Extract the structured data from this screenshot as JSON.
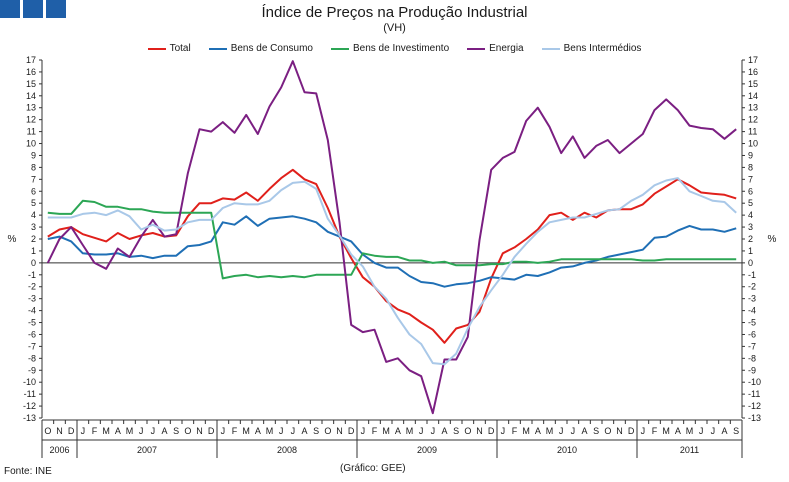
{
  "chart_data": {
    "type": "line",
    "title": "Índice de Preços na Produção Industrial",
    "subtitle": "(VH)",
    "ylabel_left": "%",
    "ylabel_right": "%",
    "ylim": [
      -13,
      17
    ],
    "yticks": [
      -13,
      -12,
      -11,
      -10,
      -9,
      -8,
      -7,
      -6,
      -5,
      -4,
      -3,
      -2,
      -1,
      0,
      1,
      2,
      3,
      4,
      5,
      6,
      7,
      8,
      9,
      10,
      11,
      12,
      13,
      14,
      15,
      16,
      17
    ],
    "grid": false,
    "legend_position": "top",
    "x_months": [
      "O",
      "N",
      "D",
      "J",
      "F",
      "M",
      "A",
      "M",
      "J",
      "J",
      "A",
      "S",
      "O",
      "N",
      "D",
      "J",
      "F",
      "M",
      "A",
      "M",
      "J",
      "J",
      "A",
      "S",
      "O",
      "N",
      "D",
      "J",
      "F",
      "M",
      "A",
      "M",
      "J",
      "J",
      "A",
      "S",
      "O",
      "N",
      "D",
      "J",
      "F",
      "M",
      "A",
      "M",
      "J",
      "J",
      "A",
      "S",
      "O",
      "N",
      "D",
      "J",
      "F",
      "M",
      "A",
      "M",
      "J",
      "J",
      "A",
      "S"
    ],
    "years": [
      {
        "label": "2006",
        "start": 0,
        "count": 3
      },
      {
        "label": "2007",
        "start": 3,
        "count": 12
      },
      {
        "label": "2008",
        "start": 15,
        "count": 12
      },
      {
        "label": "2009",
        "start": 27,
        "count": 12
      },
      {
        "label": "2010",
        "start": 39,
        "count": 12
      },
      {
        "label": "2011",
        "start": 51,
        "count": 9
      }
    ],
    "series": [
      {
        "name": "Total",
        "color": "#e0201b",
        "values": [
          2.2,
          2.8,
          3.0,
          2.4,
          2.1,
          1.8,
          2.5,
          2.0,
          2.3,
          2.5,
          2.2,
          2.3,
          3.9,
          5.0,
          5.0,
          5.4,
          5.3,
          5.9,
          5.2,
          6.2,
          7.1,
          7.8,
          7.0,
          6.6,
          4.6,
          2.2,
          0.4,
          -1.2,
          -2.0,
          -3.2,
          -3.9,
          -4.3,
          -5.0,
          -5.6,
          -6.7,
          -5.5,
          -5.2,
          -4.1,
          -1.3,
          0.8,
          1.3,
          2.0,
          2.8,
          4.0,
          4.2,
          3.6,
          4.2,
          3.8,
          4.4,
          4.5,
          4.5,
          4.9,
          5.8,
          6.4,
          7.0,
          6.5,
          5.9,
          5.8,
          5.7,
          5.4
        ]
      },
      {
        "name": "Bens de Consumo",
        "color": "#1f6fb5",
        "values": [
          2.0,
          2.2,
          1.8,
          0.8,
          0.7,
          0.7,
          0.8,
          0.5,
          0.6,
          0.4,
          0.6,
          0.6,
          1.4,
          1.5,
          1.8,
          3.4,
          3.2,
          3.9,
          3.1,
          3.7,
          3.8,
          3.9,
          3.7,
          3.4,
          2.6,
          2.2,
          1.8,
          0.7,
          0.0,
          -0.4,
          -0.4,
          -1.1,
          -1.6,
          -1.7,
          -2.0,
          -1.8,
          -1.7,
          -1.5,
          -1.2,
          -1.3,
          -1.4,
          -1.0,
          -1.1,
          -0.8,
          -0.4,
          -0.3,
          0.0,
          0.2,
          0.5,
          0.7,
          0.9,
          1.1,
          2.1,
          2.2,
          2.7,
          3.1,
          2.8,
          2.8,
          2.6,
          2.9
        ]
      },
      {
        "name": "Bens de Investimento",
        "color": "#2ca655",
        "values": [
          4.2,
          4.1,
          4.1,
          5.2,
          5.1,
          4.7,
          4.7,
          4.5,
          4.5,
          4.3,
          4.2,
          4.2,
          4.2,
          4.2,
          4.2,
          -1.3,
          -1.1,
          -1.0,
          -1.2,
          -1.1,
          -1.2,
          -1.1,
          -1.2,
          -1.0,
          -1.0,
          -1.0,
          -1.0,
          0.8,
          0.6,
          0.5,
          0.5,
          0.2,
          0.2,
          0.0,
          0.1,
          -0.2,
          -0.2,
          -0.2,
          -0.1,
          -0.1,
          0.1,
          0.1,
          0.0,
          0.1,
          0.3,
          0.3,
          0.3,
          0.3,
          0.3,
          0.3,
          0.3,
          0.2,
          0.2,
          0.3,
          0.3,
          0.3,
          0.3,
          0.3,
          0.3,
          0.3
        ]
      },
      {
        "name": "Energia",
        "color": "#7b1f82",
        "values": [
          0.0,
          2.0,
          3.0,
          1.5,
          0.0,
          -0.5,
          1.2,
          0.5,
          2.2,
          3.6,
          2.2,
          2.4,
          7.5,
          11.2,
          11.0,
          11.8,
          10.9,
          12.4,
          10.8,
          13.1,
          14.7,
          16.9,
          14.3,
          14.2,
          10.3,
          3.4,
          -5.2,
          -5.8,
          -5.6,
          -8.3,
          -8.0,
          -9.0,
          -9.5,
          -12.6,
          -8.1,
          -8.1,
          -6.2,
          1.9,
          7.8,
          8.8,
          9.3,
          11.9,
          13.0,
          11.4,
          9.2,
          10.6,
          8.8,
          9.8,
          10.3,
          9.2,
          10.0,
          10.8,
          12.8,
          13.7,
          12.8,
          11.5,
          11.3,
          11.2,
          10.4,
          11.2
        ]
      },
      {
        "name": "Bens Intermédios",
        "color": "#a9c8e8",
        "values": [
          3.8,
          3.8,
          3.8,
          4.1,
          4.2,
          4.0,
          4.4,
          3.9,
          2.8,
          3.2,
          2.7,
          2.8,
          3.4,
          3.6,
          3.6,
          4.6,
          5.0,
          4.9,
          4.9,
          5.2,
          6.1,
          6.7,
          6.8,
          6.2,
          3.7,
          2.3,
          0.7,
          -0.3,
          -2.0,
          -3.0,
          -4.6,
          -6.0,
          -6.8,
          -8.4,
          -8.5,
          -7.6,
          -5.5,
          -3.7,
          -2.3,
          -1.0,
          0.5,
          1.6,
          2.6,
          3.4,
          3.6,
          3.8,
          3.8,
          4.1,
          4.4,
          4.5,
          5.2,
          5.7,
          6.5,
          6.9,
          7.1,
          6.0,
          5.6,
          5.2,
          5.1,
          4.2
        ]
      }
    ]
  },
  "footer": {
    "source": "Fonte: INE",
    "credit": "(Gráfico: GEE)"
  }
}
